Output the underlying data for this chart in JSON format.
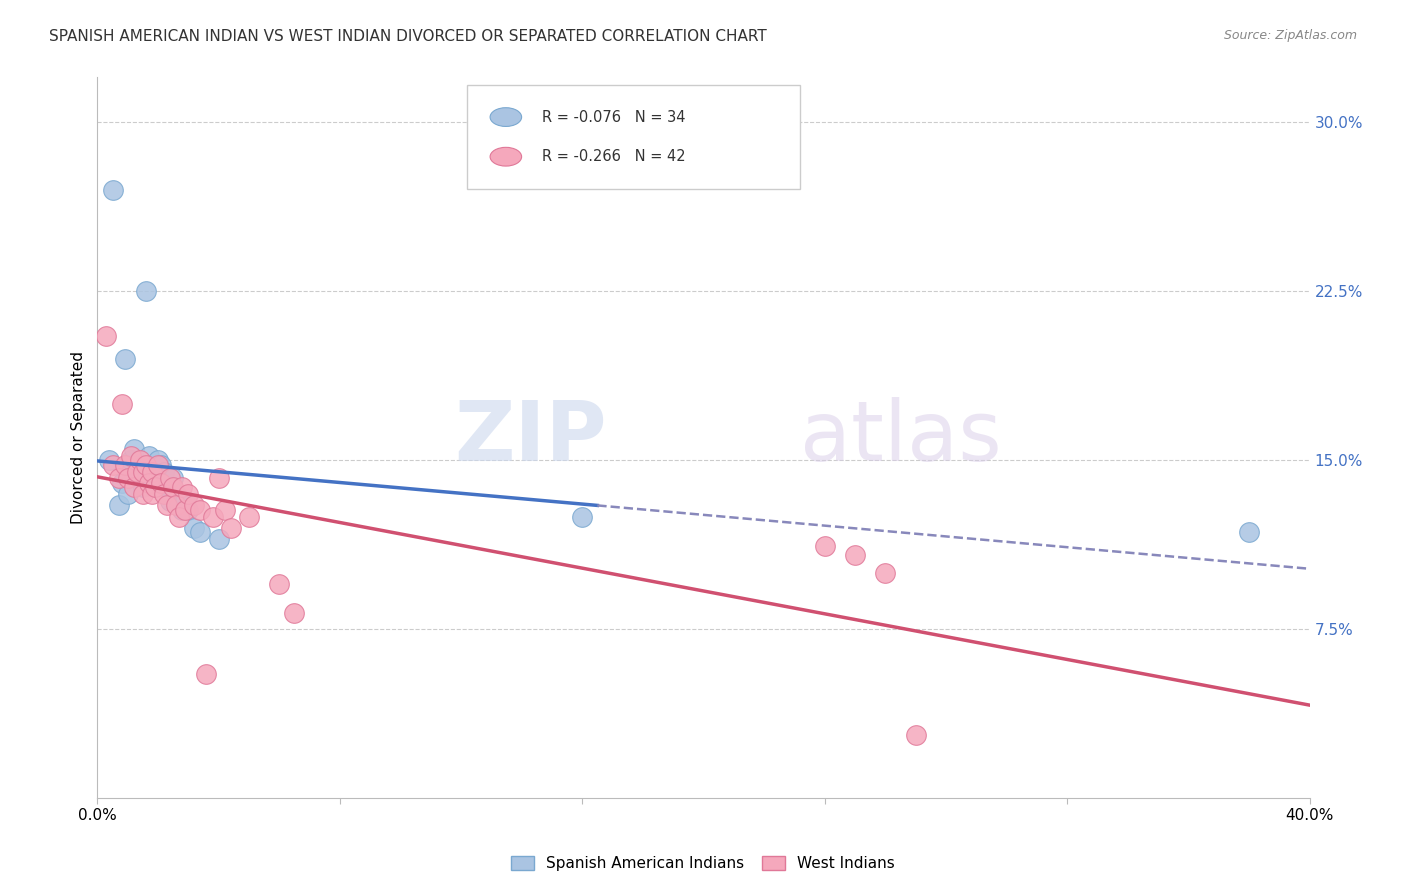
{
  "title": "SPANISH AMERICAN INDIAN VS WEST INDIAN DIVORCED OR SEPARATED CORRELATION CHART",
  "source": "Source: ZipAtlas.com",
  "ylabel": "Divorced or Separated",
  "yticks_pct": [
    7.5,
    15.0,
    22.5,
    30.0
  ],
  "ytick_labels": [
    "7.5%",
    "15.0%",
    "22.5%",
    "30.0%"
  ],
  "xmin": 0.0,
  "xmax": 0.4,
  "ymin": 0.0,
  "ymax": 0.32,
  "legend_blue_r": "-0.076",
  "legend_blue_n": "34",
  "legend_pink_r": "-0.266",
  "legend_pink_n": "42",
  "legend_blue_label": "Spanish American Indians",
  "legend_pink_label": "West Indians",
  "blue_color": "#aac4e2",
  "pink_color": "#f5a8bc",
  "blue_edge_color": "#7aa8d0",
  "pink_edge_color": "#e07898",
  "blue_line_color": "#4472C4",
  "pink_line_color": "#D05070",
  "dash_color": "#8888bb",
  "blue_x": [
    0.004,
    0.005,
    0.007,
    0.008,
    0.009,
    0.01,
    0.01,
    0.011,
    0.012,
    0.013,
    0.014,
    0.015,
    0.015,
    0.016,
    0.017,
    0.018,
    0.019,
    0.02,
    0.02,
    0.021,
    0.022,
    0.023,
    0.024,
    0.025,
    0.026,
    0.027,
    0.028,
    0.029,
    0.03,
    0.032,
    0.034,
    0.04,
    0.16,
    0.38
  ],
  "blue_y": [
    0.15,
    0.27,
    0.13,
    0.14,
    0.195,
    0.148,
    0.135,
    0.15,
    0.155,
    0.148,
    0.142,
    0.148,
    0.138,
    0.225,
    0.152,
    0.145,
    0.138,
    0.15,
    0.14,
    0.148,
    0.145,
    0.138,
    0.132,
    0.142,
    0.135,
    0.13,
    0.128,
    0.132,
    0.128,
    0.12,
    0.118,
    0.115,
    0.125,
    0.118
  ],
  "pink_x": [
    0.003,
    0.005,
    0.007,
    0.008,
    0.009,
    0.01,
    0.011,
    0.012,
    0.013,
    0.014,
    0.015,
    0.015,
    0.016,
    0.017,
    0.018,
    0.018,
    0.019,
    0.02,
    0.021,
    0.022,
    0.023,
    0.024,
    0.025,
    0.026,
    0.027,
    0.028,
    0.029,
    0.03,
    0.032,
    0.034,
    0.036,
    0.038,
    0.04,
    0.042,
    0.044,
    0.05,
    0.06,
    0.065,
    0.24,
    0.25,
    0.26,
    0.27
  ],
  "pink_y": [
    0.205,
    0.148,
    0.142,
    0.175,
    0.148,
    0.142,
    0.152,
    0.138,
    0.145,
    0.15,
    0.145,
    0.135,
    0.148,
    0.14,
    0.145,
    0.135,
    0.138,
    0.148,
    0.14,
    0.135,
    0.13,
    0.142,
    0.138,
    0.13,
    0.125,
    0.138,
    0.128,
    0.135,
    0.13,
    0.128,
    0.055,
    0.125,
    0.142,
    0.128,
    0.12,
    0.125,
    0.095,
    0.082,
    0.112,
    0.108,
    0.1,
    0.028
  ]
}
